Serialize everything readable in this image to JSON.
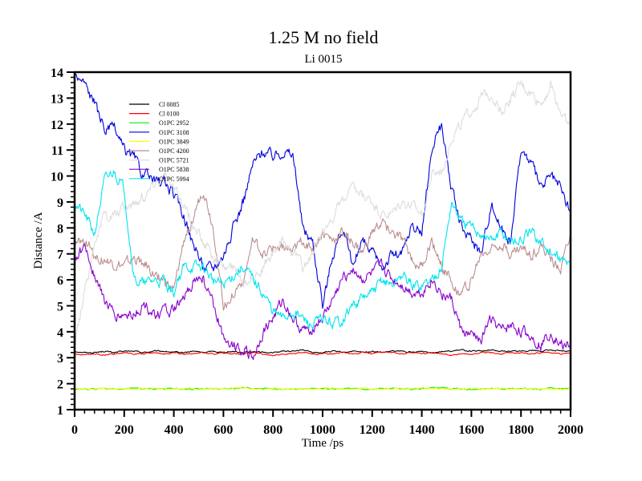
{
  "chart_data": {
    "type": "line",
    "title": "1.25 M no field",
    "subtitle": "Li 0015",
    "xlabel": "Time /ps",
    "ylabel": "Distance /A",
    "xlim": [
      0,
      2000
    ],
    "ylim": [
      1,
      14
    ],
    "xticks": [
      "0",
      "200",
      "400",
      "600",
      "800",
      "1000",
      "1200",
      "1400",
      "1600",
      "1800",
      "2000"
    ],
    "yticks": [
      "1",
      "2",
      "3",
      "4",
      "5",
      "6",
      "7",
      "8",
      "9",
      "10",
      "11",
      "12",
      "13",
      "14"
    ],
    "grid": false,
    "legend_position": "top-left",
    "x": [
      0,
      40,
      80,
      120,
      160,
      200,
      240,
      280,
      320,
      360,
      400,
      440,
      480,
      520,
      560,
      600,
      640,
      680,
      720,
      760,
      800,
      840,
      880,
      920,
      960,
      1000,
      1040,
      1080,
      1120,
      1160,
      1200,
      1240,
      1280,
      1320,
      1360,
      1400,
      1440,
      1480,
      1520,
      1560,
      1600,
      1640,
      1680,
      1720,
      1760,
      1800,
      1840,
      1880,
      1920,
      1960,
      2000
    ],
    "series": [
      {
        "name": "Cl 0085",
        "color": "#000000",
        "values": [
          3.25,
          3.2,
          3.2,
          3.25,
          3.2,
          3.25,
          3.25,
          3.2,
          3.25,
          3.25,
          3.2,
          3.2,
          3.25,
          3.2,
          3.25,
          3.2,
          3.25,
          3.2,
          3.25,
          3.2,
          3.2,
          3.25,
          3.25,
          3.3,
          3.2,
          3.2,
          3.25,
          3.2,
          3.25,
          3.2,
          3.25,
          3.2,
          3.25,
          3.25,
          3.2,
          3.25,
          3.2,
          3.25,
          3.25,
          3.3,
          3.25,
          3.25,
          3.3,
          3.25,
          3.25,
          3.25,
          3.3,
          3.25,
          3.3,
          3.25,
          3.25
        ]
      },
      {
        "name": "Cl 0100",
        "color": "#ff0000",
        "values": [
          3.15,
          3.1,
          3.15,
          3.1,
          3.15,
          3.2,
          3.15,
          3.15,
          3.2,
          3.15,
          3.2,
          3.15,
          3.15,
          3.2,
          3.15,
          3.2,
          3.15,
          3.15,
          3.2,
          3.15,
          3.1,
          3.15,
          3.15,
          3.2,
          3.15,
          3.15,
          3.15,
          3.2,
          3.15,
          3.2,
          3.15,
          3.2,
          3.2,
          3.15,
          3.2,
          3.15,
          3.2,
          3.15,
          3.1,
          3.15,
          3.15,
          3.2,
          3.2,
          3.15,
          3.2,
          3.2,
          3.15,
          3.2,
          3.2,
          3.15,
          3.2
        ]
      },
      {
        "name": "O1PC 2952",
        "color": "#00ee00",
        "values": [
          1.8,
          1.8,
          1.78,
          1.82,
          1.8,
          1.8,
          1.82,
          1.8,
          1.8,
          1.8,
          1.82,
          1.78,
          1.8,
          1.8,
          1.82,
          1.8,
          1.8,
          1.85,
          1.8,
          1.82,
          1.8,
          1.78,
          1.8,
          1.8,
          1.82,
          1.8,
          1.8,
          1.8,
          1.82,
          1.8,
          1.78,
          1.8,
          1.82,
          1.8,
          1.8,
          1.8,
          1.82,
          1.85,
          1.8,
          1.8,
          1.78,
          1.8,
          1.82,
          1.8,
          1.8,
          1.8,
          1.8,
          1.78,
          1.82,
          1.8,
          1.8
        ]
      },
      {
        "name": "O1PC 3108",
        "color": "#0000dd",
        "values": [
          13.9,
          13.6,
          12.8,
          11.8,
          11.8,
          11.0,
          10.7,
          10.0,
          9.8,
          9.8,
          9.3,
          8.5,
          7.3,
          6.5,
          6.5,
          7.0,
          8.0,
          9.0,
          10.5,
          11.0,
          10.8,
          11.0,
          10.8,
          8.0,
          7.5,
          5.0,
          7.0,
          8.0,
          6.5,
          7.5,
          7.0,
          6.5,
          7.0,
          7.0,
          8.0,
          7.8,
          11.0,
          12.0,
          9.5,
          8.0,
          7.5,
          7.0,
          9.0,
          8.0,
          7.5,
          11.0,
          10.5,
          9.5,
          10.0,
          9.5,
          8.6
        ]
      },
      {
        "name": "O1PC 3849",
        "color": "#ffff00",
        "values": [
          1.82,
          1.8,
          1.8,
          1.82,
          1.8,
          1.82,
          1.8,
          1.8,
          1.82,
          1.8,
          1.8,
          1.8,
          1.82,
          1.8,
          1.82,
          1.8,
          1.82,
          1.85,
          1.8,
          1.8,
          1.82,
          1.8,
          1.8,
          1.82,
          1.8,
          1.8,
          1.82,
          1.8,
          1.8,
          1.82,
          1.8,
          1.8,
          1.8,
          1.82,
          1.8,
          1.82,
          1.8,
          1.8,
          1.78,
          1.8,
          1.82,
          1.8,
          1.8,
          1.82,
          1.8,
          1.8,
          1.82,
          1.8,
          1.8,
          1.78,
          1.82
        ]
      },
      {
        "name": "O1PC 4200",
        "color": "#bc8f8f",
        "values": [
          7.3,
          7.5,
          7.0,
          6.8,
          6.6,
          6.5,
          6.8,
          6.6,
          6.2,
          6.0,
          5.5,
          7.5,
          8.5,
          9.5,
          8.0,
          5.0,
          5.5,
          6.0,
          7.5,
          7.0,
          7.2,
          7.3,
          7.0,
          7.5,
          7.2,
          7.8,
          7.5,
          7.8,
          7.5,
          7.0,
          7.8,
          8.2,
          7.8,
          7.5,
          6.8,
          6.5,
          7.5,
          6.5,
          6.0,
          5.5,
          6.0,
          7.0,
          7.2,
          7.5,
          7.0,
          7.2,
          7.0,
          7.3,
          6.8,
          6.5,
          7.8
        ]
      },
      {
        "name": "O1PC 5721",
        "color": "#dddddd",
        "values": [
          3.5,
          5.5,
          7.5,
          8.5,
          8.5,
          8.8,
          9.0,
          9.2,
          9.8,
          10.0,
          9.5,
          9.0,
          8.0,
          7.5,
          6.8,
          6.5,
          6.5,
          6.0,
          6.2,
          6.5,
          7.0,
          7.5,
          7.2,
          6.5,
          7.0,
          7.8,
          8.5,
          9.0,
          9.5,
          9.2,
          9.0,
          8.5,
          8.5,
          9.0,
          8.8,
          8.5,
          10.0,
          10.2,
          11.5,
          12.0,
          12.5,
          13.0,
          13.2,
          12.5,
          13.0,
          13.5,
          13.2,
          12.8,
          13.5,
          12.5,
          11.8
        ]
      },
      {
        "name": "O1PC 5838",
        "color": "#8800cc",
        "values": [
          6.8,
          7.3,
          6.2,
          5.2,
          4.6,
          4.6,
          4.7,
          5.0,
          4.7,
          4.8,
          4.8,
          5.2,
          6.0,
          6.0,
          5.0,
          3.8,
          3.5,
          3.4,
          3.0,
          4.0,
          4.5,
          5.2,
          4.5,
          4.0,
          4.2,
          4.5,
          5.2,
          6.0,
          6.5,
          6.0,
          6.2,
          6.5,
          6.0,
          5.8,
          5.5,
          5.5,
          6.0,
          5.5,
          5.2,
          4.0,
          3.8,
          3.8,
          4.5,
          4.0,
          4.2,
          4.0,
          3.8,
          3.5,
          4.0,
          3.5,
          3.5
        ]
      },
      {
        "name": "O1PC 5994",
        "color": "#00e5ee",
        "values": [
          9.0,
          8.5,
          7.8,
          9.8,
          10.2,
          9.5,
          6.0,
          5.8,
          6.0,
          6.0,
          5.5,
          6.5,
          6.5,
          6.5,
          6.0,
          5.8,
          6.2,
          6.5,
          6.0,
          5.5,
          4.8,
          4.5,
          4.8,
          4.5,
          4.2,
          4.5,
          4.3,
          4.5,
          5.0,
          5.3,
          5.5,
          6.0,
          5.8,
          6.2,
          5.8,
          5.8,
          6.0,
          6.5,
          9.0,
          8.2,
          8.0,
          7.8,
          7.5,
          7.8,
          7.5,
          7.5,
          7.8,
          7.5,
          7.0,
          6.8,
          6.5
        ]
      }
    ]
  }
}
